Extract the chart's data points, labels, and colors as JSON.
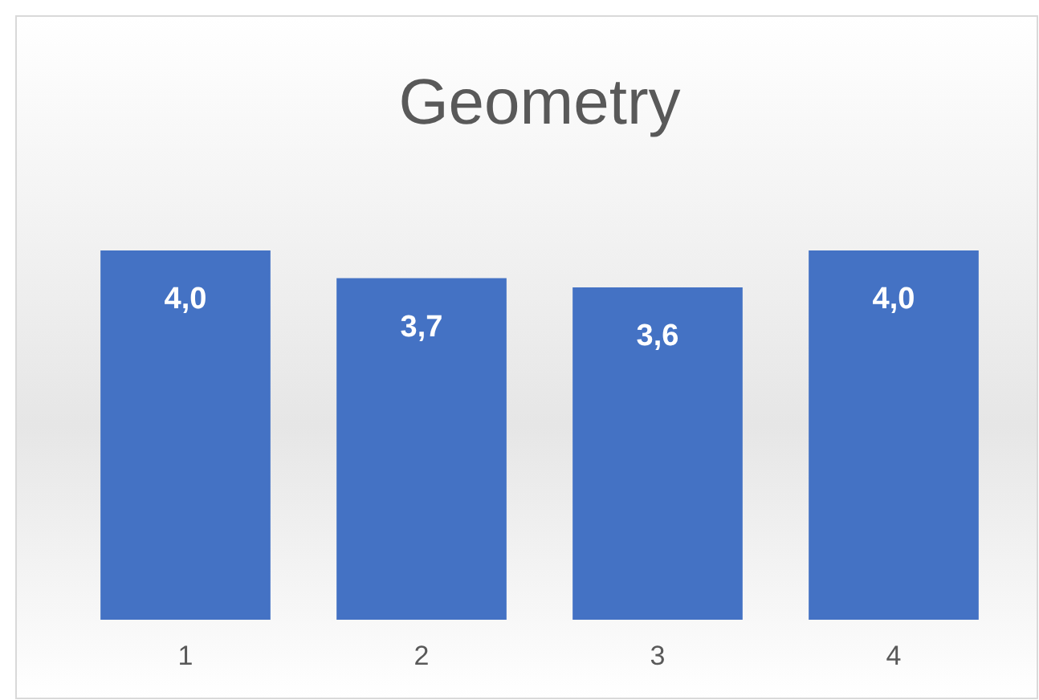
{
  "chart_data": {
    "type": "bar",
    "title": "Geometry",
    "categories": [
      "1",
      "2",
      "3",
      "4"
    ],
    "values": [
      4.0,
      3.7,
      3.6,
      4.0
    ],
    "value_labels": [
      "4,0",
      "3,7",
      "3,6",
      "4,0"
    ],
    "color": "#4472c4"
  }
}
